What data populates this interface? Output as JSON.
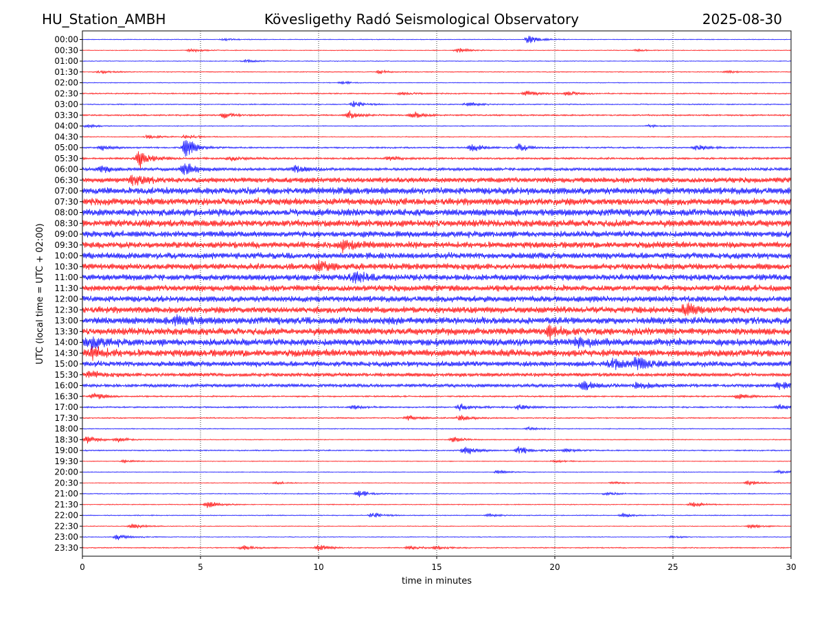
{
  "header": {
    "station": "HU_Station_AMBH",
    "observatory": "Kövesligethy Radó Seismological Observatory",
    "date": "2025-08-30"
  },
  "chart_data": {
    "type": "line",
    "title": "Kövesligethy Radó Seismological Observatory",
    "xlabel": "time in minutes",
    "ylabel": "UTC (local time = UTC + 02:00)",
    "xlim": [
      0,
      30
    ],
    "x_ticks": [
      "0",
      "5",
      "10",
      "15",
      "20",
      "25",
      "30"
    ],
    "grid": "vertical dotted lines at each x tick",
    "trace_colors": [
      "#0000ff",
      "#ff0000"
    ],
    "traces": [
      {
        "label": "00:00",
        "color": "#0000ff",
        "level": 0.5,
        "events": [
          [
            6.0,
            1.5
          ],
          [
            18.9,
            5.0
          ]
        ]
      },
      {
        "label": "00:30",
        "color": "#ff0000",
        "level": 0.5,
        "events": [
          [
            4.6,
            2.5
          ],
          [
            15.9,
            3.0
          ],
          [
            23.5,
            1.5
          ]
        ]
      },
      {
        "label": "01:00",
        "color": "#0000ff",
        "level": 0.5,
        "events": [
          [
            6.9,
            2.0
          ]
        ]
      },
      {
        "label": "01:30",
        "color": "#ff0000",
        "level": 0.6,
        "events": [
          [
            0.8,
            2.0
          ],
          [
            12.6,
            2.5
          ],
          [
            27.3,
            1.5
          ]
        ]
      },
      {
        "label": "02:00",
        "color": "#0000ff",
        "level": 0.5,
        "events": [
          [
            11.0,
            2.0
          ]
        ]
      },
      {
        "label": "02:30",
        "color": "#ff0000",
        "level": 0.8,
        "events": [
          [
            18.8,
            4.0
          ],
          [
            20.5,
            3.0
          ],
          [
            13.5,
            2.0
          ]
        ]
      },
      {
        "label": "03:00",
        "color": "#0000ff",
        "level": 0.7,
        "events": [
          [
            11.5,
            4.0
          ],
          [
            16.3,
            3.0
          ]
        ]
      },
      {
        "label": "03:30",
        "color": "#ff0000",
        "level": 1.0,
        "events": [
          [
            11.3,
            5.0
          ],
          [
            14.0,
            4.0
          ],
          [
            6.0,
            3.0
          ]
        ]
      },
      {
        "label": "04:00",
        "color": "#0000ff",
        "level": 0.6,
        "events": [
          [
            0.2,
            2.0
          ],
          [
            24.0,
            1.5
          ]
        ]
      },
      {
        "label": "04:30",
        "color": "#ff0000",
        "level": 0.6,
        "events": [
          [
            2.8,
            2.5
          ],
          [
            4.4,
            3.0
          ]
        ]
      },
      {
        "label": "05:00",
        "color": "#0000ff",
        "level": 1.0,
        "events": [
          [
            4.4,
            12.0
          ],
          [
            16.5,
            5.0
          ],
          [
            18.5,
            4.5
          ],
          [
            26.0,
            4.0
          ],
          [
            0.8,
            3.0
          ]
        ]
      },
      {
        "label": "05:30",
        "color": "#ff0000",
        "level": 1.3,
        "events": [
          [
            2.4,
            12.0
          ],
          [
            6.3,
            3.0
          ],
          [
            13.0,
            2.5
          ]
        ]
      },
      {
        "label": "06:00",
        "color": "#0000ff",
        "level": 2.0,
        "events": [
          [
            4.3,
            9.0
          ],
          [
            9.0,
            5.0
          ],
          [
            0.8,
            4.0
          ]
        ]
      },
      {
        "label": "06:30",
        "color": "#ff0000",
        "level": 3.5,
        "events": [
          [
            2.2,
            7.0
          ]
        ]
      },
      {
        "label": "07:00",
        "color": "#0000ff",
        "level": 4.5,
        "events": []
      },
      {
        "label": "07:30",
        "color": "#ff0000",
        "level": 4.5,
        "events": []
      },
      {
        "label": "08:00",
        "color": "#0000ff",
        "level": 4.5,
        "events": []
      },
      {
        "label": "08:30",
        "color": "#ff0000",
        "level": 4.5,
        "events": []
      },
      {
        "label": "09:00",
        "color": "#0000ff",
        "level": 4.0,
        "events": []
      },
      {
        "label": "09:30",
        "color": "#ff0000",
        "level": 4.0,
        "events": [
          [
            11.0,
            6.0
          ]
        ]
      },
      {
        "label": "10:00",
        "color": "#0000ff",
        "level": 4.0,
        "events": []
      },
      {
        "label": "10:30",
        "color": "#ff0000",
        "level": 4.0,
        "events": [
          [
            10.0,
            6.0
          ]
        ]
      },
      {
        "label": "11:00",
        "color": "#0000ff",
        "level": 4.0,
        "events": [
          [
            11.5,
            6.0
          ]
        ]
      },
      {
        "label": "11:30",
        "color": "#ff0000",
        "level": 4.0,
        "events": []
      },
      {
        "label": "12:00",
        "color": "#0000ff",
        "level": 4.0,
        "events": []
      },
      {
        "label": "12:30",
        "color": "#ff0000",
        "level": 4.2,
        "events": [
          [
            25.5,
            6.0
          ]
        ]
      },
      {
        "label": "13:00",
        "color": "#0000ff",
        "level": 4.5,
        "events": [
          [
            4.0,
            6.0
          ]
        ]
      },
      {
        "label": "13:30",
        "color": "#ff0000",
        "level": 4.5,
        "events": [
          [
            19.8,
            7.0
          ]
        ]
      },
      {
        "label": "14:00",
        "color": "#0000ff",
        "level": 4.5,
        "events": [
          [
            0.3,
            7.0
          ],
          [
            21.0,
            6.0
          ]
        ]
      },
      {
        "label": "14:30",
        "color": "#ff0000",
        "level": 4.5,
        "events": [
          [
            0.4,
            7.0
          ]
        ]
      },
      {
        "label": "15:00",
        "color": "#0000ff",
        "level": 3.5,
        "events": [
          [
            23.5,
            8.0
          ],
          [
            22.4,
            6.0
          ]
        ]
      },
      {
        "label": "15:30",
        "color": "#ff0000",
        "level": 2.5,
        "events": [
          [
            0.3,
            4.0
          ]
        ]
      },
      {
        "label": "16:00",
        "color": "#0000ff",
        "level": 2.2,
        "events": [
          [
            21.2,
            6.0
          ],
          [
            29.5,
            5.0
          ],
          [
            23.5,
            4.0
          ]
        ]
      },
      {
        "label": "16:30",
        "color": "#ff0000",
        "level": 1.0,
        "events": [
          [
            0.5,
            4.5
          ],
          [
            27.8,
            4.0
          ]
        ]
      },
      {
        "label": "17:00",
        "color": "#0000ff",
        "level": 1.0,
        "events": [
          [
            16.0,
            4.5
          ],
          [
            18.5,
            4.0
          ],
          [
            29.5,
            3.5
          ],
          [
            11.5,
            2.5
          ]
        ]
      },
      {
        "label": "17:30",
        "color": "#ff0000",
        "level": 0.8,
        "events": [
          [
            13.8,
            4.0
          ],
          [
            16.0,
            4.0
          ]
        ]
      },
      {
        "label": "18:00",
        "color": "#0000ff",
        "level": 0.6,
        "events": [
          [
            18.9,
            2.0
          ]
        ]
      },
      {
        "label": "18:30",
        "color": "#ff0000",
        "level": 0.6,
        "events": [
          [
            0.2,
            5.0
          ],
          [
            1.5,
            3.0
          ],
          [
            15.7,
            3.5
          ]
        ]
      },
      {
        "label": "19:00",
        "color": "#0000ff",
        "level": 0.8,
        "events": [
          [
            16.2,
            5.5
          ],
          [
            18.5,
            5.0
          ],
          [
            20.5,
            3.0
          ]
        ]
      },
      {
        "label": "19:30",
        "color": "#ff0000",
        "level": 0.5,
        "events": [
          [
            1.8,
            2.0
          ],
          [
            20.0,
            2.0
          ]
        ]
      },
      {
        "label": "20:00",
        "color": "#0000ff",
        "level": 0.5,
        "events": [
          [
            17.6,
            2.5
          ],
          [
            29.5,
            2.5
          ]
        ]
      },
      {
        "label": "20:30",
        "color": "#ff0000",
        "level": 0.5,
        "events": [
          [
            8.2,
            2.0
          ],
          [
            28.2,
            3.0
          ],
          [
            22.5,
            1.5
          ]
        ]
      },
      {
        "label": "21:00",
        "color": "#0000ff",
        "level": 0.6,
        "events": [
          [
            11.7,
            5.0
          ],
          [
            22.2,
            2.0
          ]
        ]
      },
      {
        "label": "21:30",
        "color": "#ff0000",
        "level": 0.6,
        "events": [
          [
            5.3,
            4.0
          ],
          [
            25.8,
            3.5
          ]
        ]
      },
      {
        "label": "22:00",
        "color": "#0000ff",
        "level": 0.6,
        "events": [
          [
            12.3,
            3.5
          ],
          [
            22.9,
            3.0
          ],
          [
            17.2,
            2.0
          ]
        ]
      },
      {
        "label": "22:30",
        "color": "#ff0000",
        "level": 0.5,
        "events": [
          [
            2.1,
            3.5
          ],
          [
            28.3,
            3.0
          ]
        ]
      },
      {
        "label": "23:00",
        "color": "#0000ff",
        "level": 0.5,
        "events": [
          [
            1.5,
            4.0
          ],
          [
            25.0,
            1.5
          ]
        ]
      },
      {
        "label": "23:30",
        "color": "#ff0000",
        "level": 0.7,
        "events": [
          [
            6.8,
            3.0
          ],
          [
            10.0,
            3.5
          ],
          [
            13.8,
            2.5
          ],
          [
            15.0,
            2.5
          ]
        ]
      }
    ]
  }
}
